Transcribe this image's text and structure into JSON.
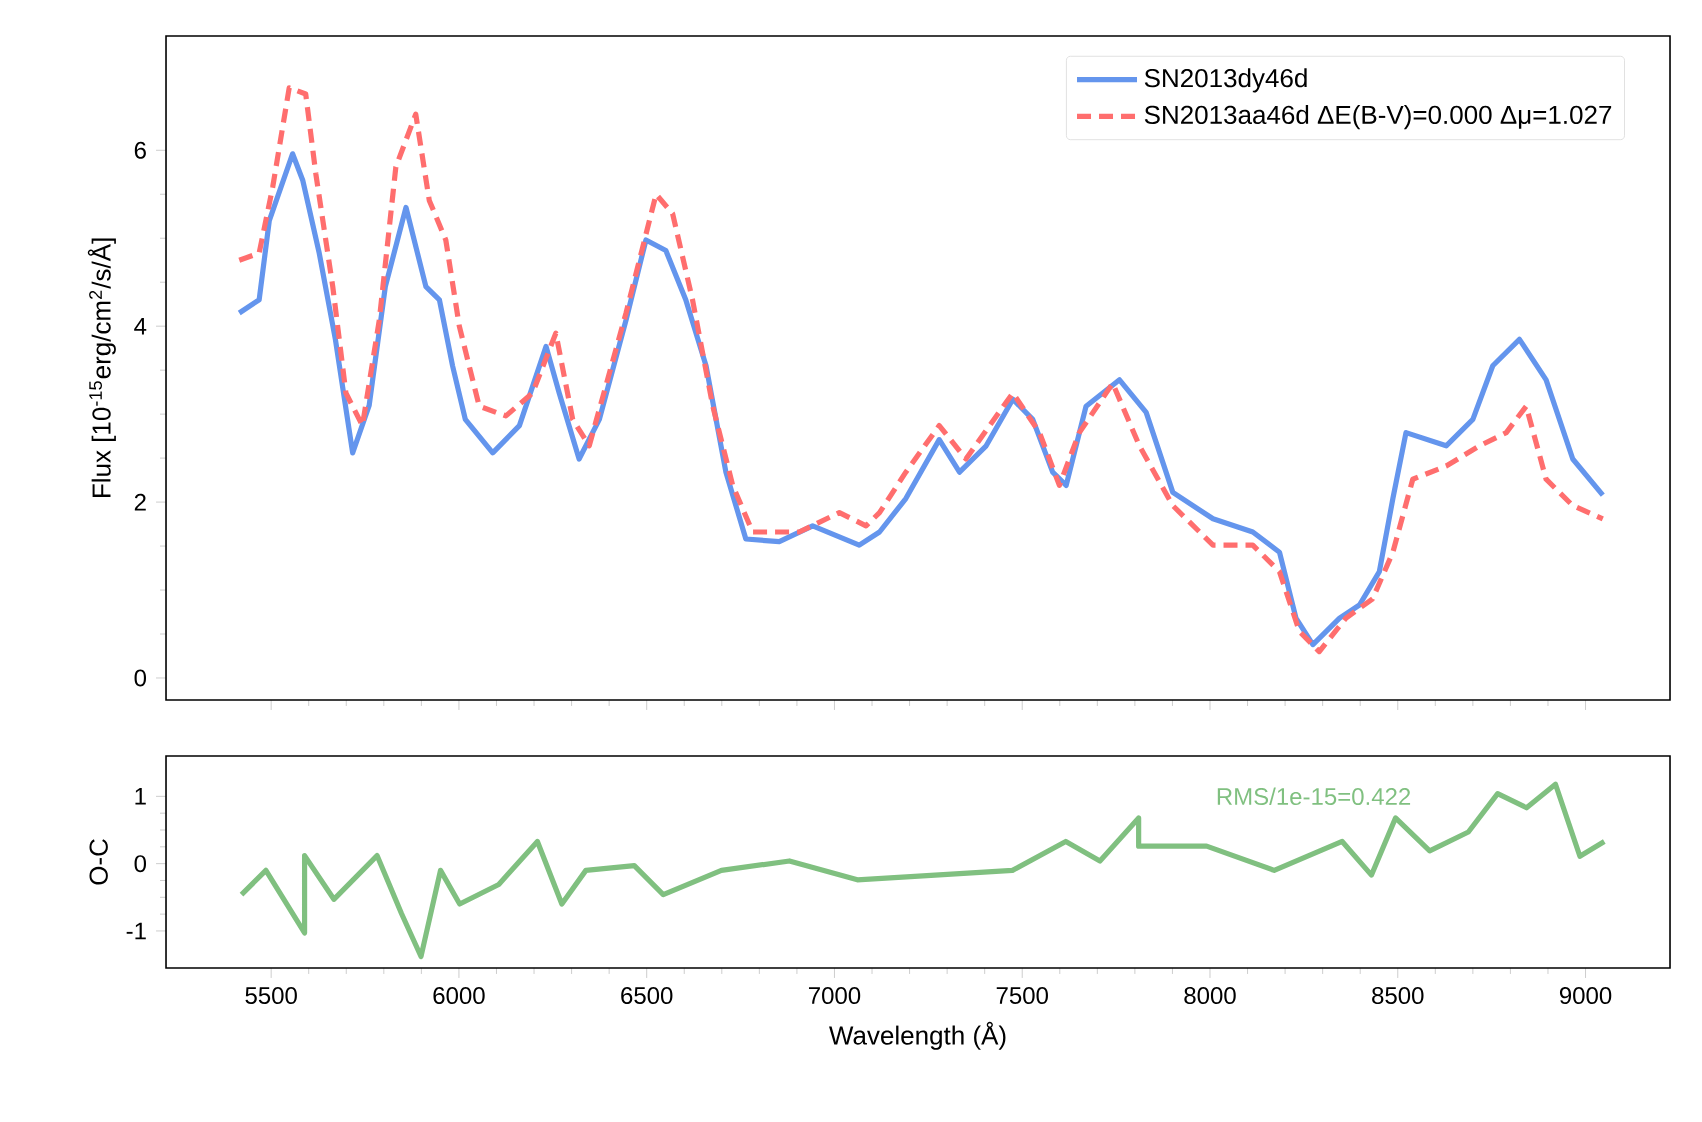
{
  "chart_data": [
    {
      "type": "line",
      "ylabel": "Flux [10$^{-15}$erg/cm$^{2}$/s/Å]",
      "xlim": [
        5220,
        9225
      ],
      "ylim": [
        -0.25,
        7.3
      ],
      "xticks": [
        5500,
        6000,
        6500,
        7000,
        7500,
        8000,
        8500,
        9000
      ],
      "yticks": [
        0,
        2,
        4,
        6
      ],
      "tick_labels": "y",
      "legend": "top right",
      "series": [
        {
          "name": "SN2013dy46d",
          "color": "#6495ed",
          "line_style": "solid",
          "x": [
            5415,
            5468,
            5495,
            5557,
            5584,
            5628,
            5671,
            5717,
            5761,
            5804,
            5859,
            5912,
            5948,
            5983,
            6017,
            6090,
            6161,
            6232,
            6267,
            6320,
            6374,
            6445,
            6498,
            6551,
            6604,
            6658,
            6711,
            6764,
            6853,
            6942,
            7066,
            7120,
            7190,
            7279,
            7333,
            7404,
            7475,
            7528,
            7581,
            7617,
            7670,
            7759,
            7830,
            7901,
            8008,
            8114,
            8185,
            8229,
            8274,
            8345,
            8398,
            8451,
            8487,
            8522,
            8629,
            8700,
            8753,
            8824,
            8895,
            8966,
            9046
          ],
          "values": [
            4.15,
            4.3,
            5.2,
            5.96,
            5.66,
            4.83,
            3.85,
            2.56,
            3.1,
            4.45,
            5.35,
            4.45,
            4.3,
            3.55,
            2.94,
            2.56,
            2.87,
            3.77,
            3.24,
            2.49,
            2.94,
            4.07,
            4.98,
            4.86,
            4.3,
            3.55,
            2.34,
            1.58,
            1.55,
            1.73,
            1.51,
            1.66,
            2.04,
            2.71,
            2.34,
            2.64,
            3.17,
            2.94,
            2.34,
            2.19,
            3.09,
            3.39,
            3.02,
            2.11,
            1.81,
            1.66,
            1.43,
            0.68,
            0.38,
            0.68,
            0.83,
            1.21,
            2.04,
            2.79,
            2.64,
            2.94,
            3.55,
            3.85,
            3.39,
            2.49,
            2.08
          ]
        },
        {
          "name": "SN2013aa46d ΔE(B-V)=0.000 Δμ=1.027",
          "color": "#ff6e6e",
          "line_style": "dashed",
          "x": [
            5415,
            5468,
            5504,
            5548,
            5592,
            5619,
            5664,
            5699,
            5743,
            5788,
            5832,
            5885,
            5921,
            5965,
            6001,
            6054,
            6125,
            6196,
            6258,
            6303,
            6347,
            6445,
            6525,
            6569,
            6622,
            6676,
            6729,
            6782,
            6906,
            7013,
            7084,
            7120,
            7190,
            7279,
            7350,
            7475,
            7546,
            7599,
            7652,
            7741,
            7812,
            7901,
            8008,
            8114,
            8185,
            8238,
            8291,
            8362,
            8433,
            8487,
            8540,
            8629,
            8718,
            8789,
            8842,
            8895,
            8966,
            9046
          ],
          "values": [
            4.75,
            4.83,
            5.58,
            6.71,
            6.64,
            5.73,
            4.45,
            3.24,
            2.87,
            4.07,
            5.81,
            6.41,
            5.43,
            4.98,
            4.0,
            3.09,
            2.98,
            3.24,
            3.92,
            2.94,
            2.64,
            4.15,
            5.5,
            5.28,
            4.3,
            3.09,
            2.19,
            1.66,
            1.66,
            1.88,
            1.73,
            1.88,
            2.34,
            2.87,
            2.49,
            3.24,
            2.79,
            2.19,
            2.79,
            3.35,
            2.64,
            1.96,
            1.51,
            1.51,
            1.21,
            0.53,
            0.3,
            0.68,
            0.9,
            1.43,
            2.26,
            2.41,
            2.64,
            2.79,
            3.09,
            2.26,
            1.96,
            1.81
          ]
        }
      ]
    },
    {
      "type": "line",
      "xlabel": "Wavelength (Å)",
      "ylabel": "O-C",
      "xlim": [
        5220,
        9225
      ],
      "ylim": [
        -1.55,
        1.6
      ],
      "xticks": [
        5500,
        6000,
        6500,
        7000,
        7500,
        8000,
        8500,
        9000
      ],
      "yticks": [
        -1,
        0,
        1
      ],
      "annotations": [
        "RMS/1e-15=0.422"
      ],
      "series": [
        {
          "color": "#80c080",
          "line_style": "solid",
          "x": [
            5421,
            5486,
            5589,
            5589,
            5667,
            5782,
            5847,
            5899,
            5951,
            6002,
            6106,
            6209,
            6274,
            6338,
            6467,
            6544,
            6699,
            6880,
            7061,
            7268,
            7474,
            7616,
            7707,
            7810,
            7810,
            7991,
            8171,
            8352,
            8430,
            8494,
            8585,
            8688,
            8766,
            8843,
            8920,
            8985,
            9050
          ],
          "values": [
            -0.46,
            -0.1,
            -1.03,
            0.12,
            -0.53,
            0.12,
            -0.74,
            -1.38,
            -0.1,
            -0.6,
            -0.31,
            0.33,
            -0.6,
            -0.1,
            -0.03,
            -0.46,
            -0.1,
            0.04,
            -0.24,
            -0.17,
            -0.1,
            0.33,
            0.04,
            0.68,
            0.26,
            0.26,
            -0.1,
            0.33,
            -0.17,
            0.68,
            0.19,
            0.47,
            1.04,
            0.83,
            1.18,
            0.11,
            0.33
          ]
        }
      ]
    }
  ]
}
